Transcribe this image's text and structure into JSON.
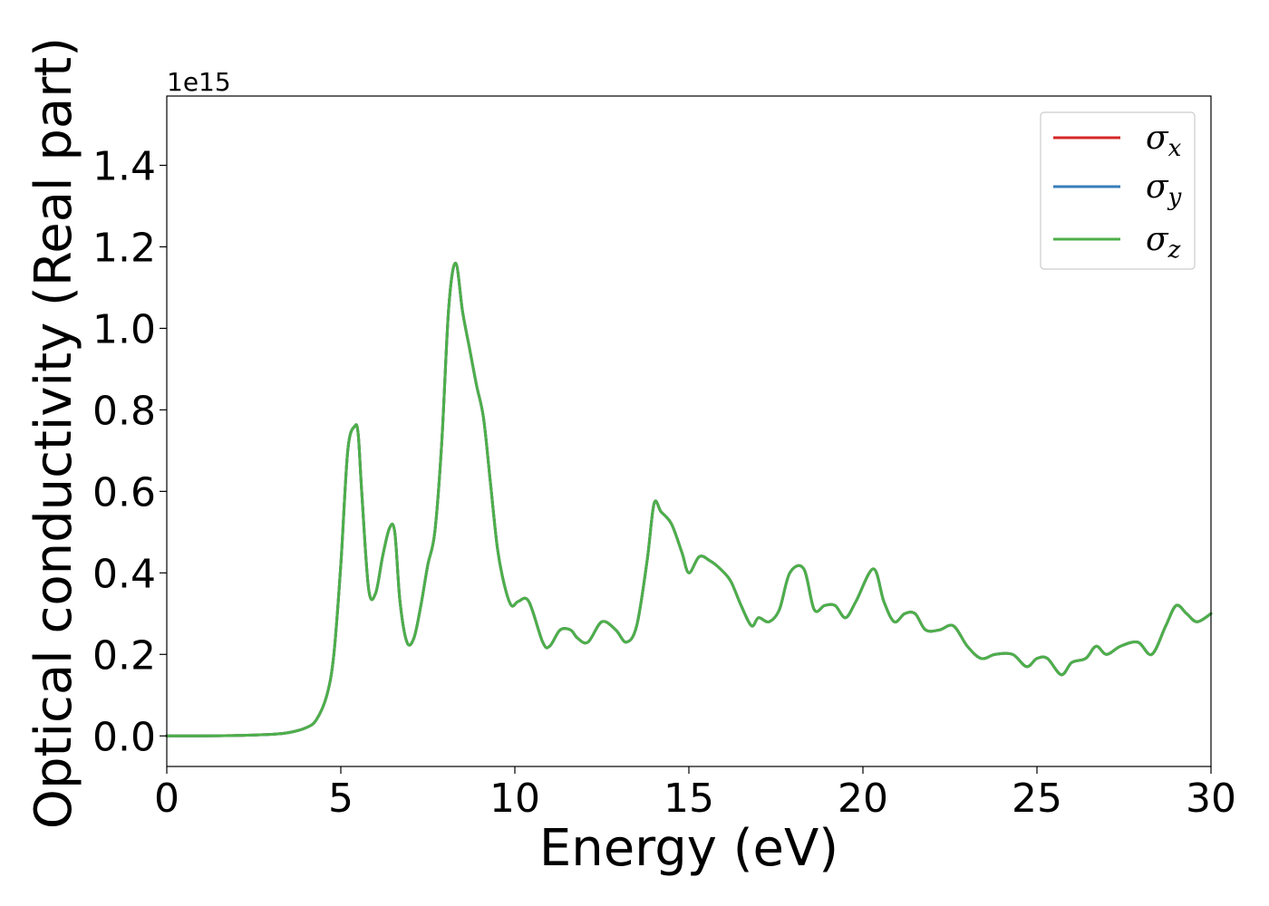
{
  "chart_data": {
    "type": "line",
    "xlabel": "Energy (eV)",
    "ylabel": "Optical conductivity (Real part)",
    "y_offset_label": "1e15",
    "xlim": [
      0,
      30
    ],
    "ylim": [
      -0.075,
      1.57
    ],
    "x_ticks": [
      0,
      5,
      10,
      15,
      20,
      25,
      30
    ],
    "x_tick_labels": [
      "0",
      "5",
      "10",
      "15",
      "20",
      "25",
      "30"
    ],
    "y_ticks": [
      0.0,
      0.2,
      0.4,
      0.6,
      0.8,
      1.0,
      1.2,
      1.4
    ],
    "y_tick_labels": [
      "0.0",
      "0.2",
      "0.4",
      "0.6",
      "0.8",
      "1.0",
      "1.2",
      "1.4"
    ],
    "grid": false,
    "legend_position": "top-right",
    "x": [
      0,
      1,
      2,
      3,
      3.5,
      4,
      4.3,
      4.6,
      4.8,
      5.0,
      5.2,
      5.4,
      5.5,
      5.6,
      5.8,
      6.0,
      6.2,
      6.4,
      6.55,
      6.7,
      6.9,
      7.1,
      7.3,
      7.5,
      7.7,
      7.9,
      8.1,
      8.3,
      8.5,
      8.7,
      8.9,
      9.1,
      9.3,
      9.5,
      9.7,
      9.9,
      10.1,
      10.4,
      10.8,
      11.0,
      11.3,
      11.6,
      11.8,
      12.1,
      12.5,
      12.9,
      13.2,
      13.5,
      13.8,
      14.0,
      14.2,
      14.5,
      14.8,
      15.0,
      15.3,
      15.6,
      15.9,
      16.2,
      16.5,
      16.8,
      17.0,
      17.3,
      17.6,
      17.9,
      18.3,
      18.6,
      18.9,
      19.2,
      19.5,
      19.8,
      20.3,
      20.6,
      20.9,
      21.2,
      21.5,
      21.8,
      22.2,
      22.6,
      23.0,
      23.4,
      23.8,
      24.3,
      24.7,
      25.0,
      25.3,
      25.7,
      26.0,
      26.4,
      26.7,
      27.0,
      27.4,
      27.9,
      28.3,
      28.7,
      29.0,
      29.3,
      29.6,
      30.0
    ],
    "series": [
      {
        "name": "σx",
        "label_base": "σ",
        "label_sub": "x",
        "color": "#d62728",
        "values": [
          0.0,
          0.0,
          0.001,
          0.004,
          0.008,
          0.02,
          0.04,
          0.1,
          0.2,
          0.42,
          0.7,
          0.76,
          0.74,
          0.6,
          0.36,
          0.35,
          0.44,
          0.51,
          0.5,
          0.33,
          0.23,
          0.24,
          0.32,
          0.42,
          0.5,
          0.72,
          1.05,
          1.16,
          1.04,
          0.95,
          0.86,
          0.78,
          0.62,
          0.46,
          0.37,
          0.32,
          0.33,
          0.33,
          0.23,
          0.22,
          0.26,
          0.26,
          0.24,
          0.23,
          0.28,
          0.26,
          0.23,
          0.27,
          0.43,
          0.57,
          0.55,
          0.52,
          0.45,
          0.4,
          0.44,
          0.43,
          0.41,
          0.38,
          0.32,
          0.27,
          0.29,
          0.28,
          0.31,
          0.4,
          0.41,
          0.31,
          0.32,
          0.32,
          0.29,
          0.33,
          0.41,
          0.33,
          0.28,
          0.3,
          0.3,
          0.26,
          0.26,
          0.27,
          0.22,
          0.19,
          0.2,
          0.2,
          0.17,
          0.19,
          0.19,
          0.15,
          0.18,
          0.19,
          0.22,
          0.2,
          0.22,
          0.23,
          0.2,
          0.27,
          0.32,
          0.3,
          0.28,
          0.3
        ]
      },
      {
        "name": "σy",
        "label_base": "σ",
        "label_sub": "y",
        "color": "#377eb8",
        "values": [
          0.0,
          0.0,
          0.001,
          0.004,
          0.008,
          0.02,
          0.04,
          0.1,
          0.2,
          0.42,
          0.7,
          0.76,
          0.74,
          0.6,
          0.36,
          0.35,
          0.44,
          0.51,
          0.5,
          0.33,
          0.23,
          0.24,
          0.32,
          0.42,
          0.5,
          0.72,
          1.05,
          1.16,
          1.04,
          0.95,
          0.86,
          0.78,
          0.62,
          0.46,
          0.37,
          0.32,
          0.33,
          0.33,
          0.23,
          0.22,
          0.26,
          0.26,
          0.24,
          0.23,
          0.28,
          0.26,
          0.23,
          0.27,
          0.43,
          0.57,
          0.55,
          0.52,
          0.45,
          0.4,
          0.44,
          0.43,
          0.41,
          0.38,
          0.32,
          0.27,
          0.29,
          0.28,
          0.31,
          0.4,
          0.41,
          0.31,
          0.32,
          0.32,
          0.29,
          0.33,
          0.41,
          0.33,
          0.28,
          0.3,
          0.3,
          0.26,
          0.26,
          0.27,
          0.22,
          0.19,
          0.2,
          0.2,
          0.17,
          0.19,
          0.19,
          0.15,
          0.18,
          0.19,
          0.22,
          0.2,
          0.22,
          0.23,
          0.2,
          0.27,
          0.32,
          0.3,
          0.28,
          0.3
        ]
      },
      {
        "name": "σz",
        "label_base": "σ",
        "label_sub": "z",
        "color": "#4daf4a",
        "values": [
          0.0,
          0.0,
          0.001,
          0.004,
          0.008,
          0.02,
          0.04,
          0.1,
          0.2,
          0.42,
          0.7,
          0.76,
          0.74,
          0.6,
          0.36,
          0.35,
          0.44,
          0.51,
          0.5,
          0.33,
          0.23,
          0.24,
          0.32,
          0.42,
          0.5,
          0.72,
          1.05,
          1.16,
          1.04,
          0.95,
          0.86,
          0.78,
          0.62,
          0.46,
          0.37,
          0.32,
          0.33,
          0.33,
          0.23,
          0.22,
          0.26,
          0.26,
          0.24,
          0.23,
          0.28,
          0.26,
          0.23,
          0.27,
          0.43,
          0.57,
          0.55,
          0.52,
          0.45,
          0.4,
          0.44,
          0.43,
          0.41,
          0.38,
          0.32,
          0.27,
          0.29,
          0.28,
          0.31,
          0.4,
          0.41,
          0.31,
          0.32,
          0.32,
          0.29,
          0.33,
          0.41,
          0.33,
          0.28,
          0.3,
          0.3,
          0.26,
          0.26,
          0.27,
          0.22,
          0.19,
          0.2,
          0.2,
          0.17,
          0.19,
          0.19,
          0.15,
          0.18,
          0.19,
          0.22,
          0.2,
          0.22,
          0.23,
          0.2,
          0.27,
          0.32,
          0.3,
          0.28,
          0.3
        ]
      }
    ]
  }
}
